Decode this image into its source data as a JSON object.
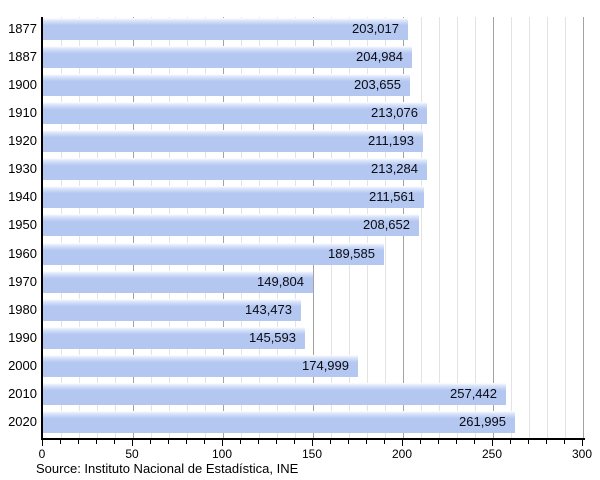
{
  "chart_data": {
    "type": "bar",
    "orientation": "horizontal",
    "title": "",
    "categories": [
      "1877",
      "1887",
      "1900",
      "1910",
      "1920",
      "1930",
      "1940",
      "1950",
      "1960",
      "1970",
      "1980",
      "1990",
      "2000",
      "2010",
      "2020"
    ],
    "values": [
      203017,
      204984,
      203655,
      213076,
      211193,
      213284,
      211561,
      208652,
      189585,
      149804,
      143473,
      145593,
      174999,
      257442,
      261995
    ],
    "value_labels": [
      "203,017",
      "204,984",
      "203,655",
      "213,076",
      "211,193",
      "213,284",
      "211,561",
      "208,652",
      "189,585",
      "149,804",
      "143,473",
      "145,593",
      "174,999",
      "257,442",
      "261,995"
    ],
    "xlabel": "",
    "ylabel": "",
    "xlim": [
      0,
      300
    ],
    "x_axis_units": "thousands",
    "x_major_ticks": [
      0,
      50,
      100,
      150,
      200,
      250,
      300
    ],
    "x_tick_labels": [
      "0",
      "50",
      "100",
      "150",
      "200",
      "250",
      "300"
    ],
    "x_minor_step": 10,
    "grid": "vertical minor every 10, major every 50",
    "legend": "none",
    "source_label": "Source: Instituto Nacional de Estadística, INE",
    "colors": {
      "bar_fill": "#b3c7f1",
      "bar_highlight_top": "#ffffff",
      "value_label_text": "#0b0b14",
      "axis": "#000000",
      "grid_minor": "#e3e3e3",
      "grid_major": "#a3a3a3",
      "background": "#ffffff"
    }
  }
}
